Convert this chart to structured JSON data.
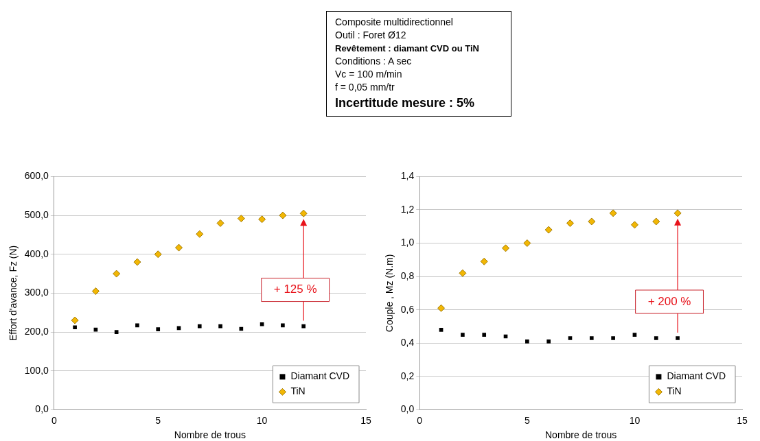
{
  "chart_data": [
    {
      "type": "other",
      "annotations": [
        "Composite multidirectionnel",
        "Outil : Foret Ø12",
        "Revêtement : diamant CVD ou TiN",
        "Conditions : A sec",
        "Vc = 100 m/min",
        "f = 0,05 mm/tr",
        "Incertitude mesure : 5%"
      ]
    },
    {
      "type": "scatter",
      "xlabel": "Nombre de trous",
      "ylabel": "Effort d'avance, Fz (N)",
      "x": [
        1,
        2,
        3,
        4,
        5,
        6,
        7,
        8,
        9,
        10,
        11,
        12
      ],
      "xlim": [
        0,
        15
      ],
      "xticks": [
        0,
        5,
        10,
        15
      ],
      "ylim": [
        0,
        600
      ],
      "yticks": [
        {
          "value": 0,
          "label": "0,0"
        },
        {
          "value": 100,
          "label": "100,0"
        },
        {
          "value": 200,
          "label": "200,0"
        },
        {
          "value": 300,
          "label": "300,0"
        },
        {
          "value": 400,
          "label": "400,0"
        },
        {
          "value": 500,
          "label": "500,0"
        },
        {
          "value": 600,
          "label": "600,0"
        }
      ],
      "grid": "y",
      "legend": "bottom right",
      "series": [
        {
          "name": "Diamant CVD",
          "color": "#000000",
          "marker": "square",
          "values": [
            212,
            206,
            200,
            217,
            207,
            210,
            215,
            215,
            208,
            220,
            217,
            215
          ]
        },
        {
          "name": "TiN",
          "color": "#f2b705",
          "marker": "diamond",
          "values": [
            230,
            305,
            350,
            380,
            400,
            417,
            452,
            480,
            492,
            490,
            500,
            505
          ]
        }
      ],
      "annotations": [
        "+ 125 %"
      ]
    },
    {
      "type": "scatter",
      "xlabel": "Nombre de trous",
      "ylabel": "Couple , Mz (N.m)",
      "x": [
        1,
        2,
        3,
        4,
        5,
        6,
        7,
        8,
        9,
        10,
        11,
        12
      ],
      "xlim": [
        0,
        15
      ],
      "xticks": [
        0,
        5,
        10,
        15
      ],
      "ylim": [
        0,
        1.4
      ],
      "yticks": [
        {
          "value": 0,
          "label": "0,0"
        },
        {
          "value": 0.2,
          "label": "0,2"
        },
        {
          "value": 0.4,
          "label": "0,4"
        },
        {
          "value": 0.6,
          "label": "0,6"
        },
        {
          "value": 0.8,
          "label": "0,8"
        },
        {
          "value": 1.0,
          "label": "1,0"
        },
        {
          "value": 1.2,
          "label": "1,2"
        },
        {
          "value": 1.4,
          "label": "1,4"
        }
      ],
      "grid": "y",
      "legend": "bottom right",
      "series": [
        {
          "name": "Diamant CVD",
          "color": "#000000",
          "marker": "square",
          "values": [
            0.48,
            0.45,
            0.45,
            0.44,
            0.41,
            0.41,
            0.43,
            0.43,
            0.43,
            0.45,
            0.43,
            0.43
          ]
        },
        {
          "name": "TiN",
          "color": "#f2b705",
          "marker": "diamond",
          "values": [
            0.61,
            0.82,
            0.89,
            0.97,
            1.0,
            1.08,
            1.12,
            1.13,
            1.18,
            1.11,
            1.13,
            1.18
          ]
        }
      ],
      "annotations": [
        "+ 200 %"
      ]
    }
  ]
}
